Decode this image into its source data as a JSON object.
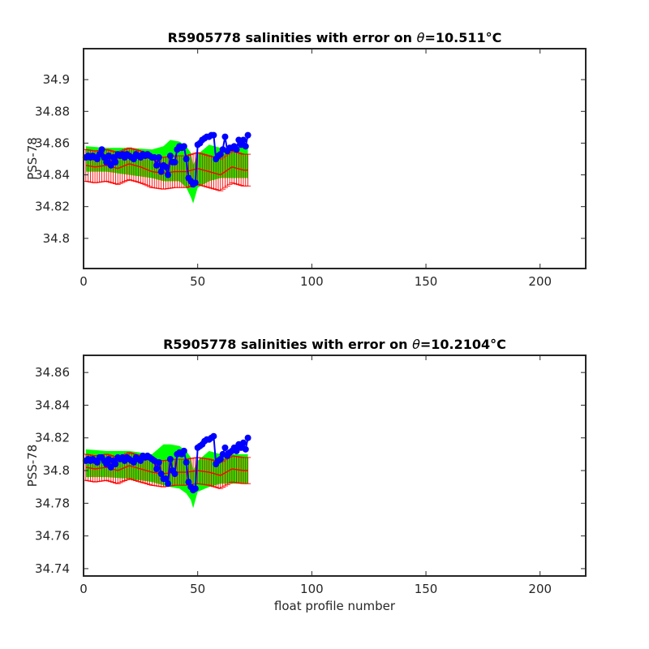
{
  "chart_data": [
    {
      "type": "line",
      "title_prefix": "R5905778 salinities with error on ",
      "title_symbol": "θ",
      "title_value": "=10.511",
      "title_unit": "°C",
      "xlabel": "",
      "ylabel": "PSS-78",
      "xlim": [
        0,
        220
      ],
      "ylim": [
        34.781,
        34.9195
      ],
      "xticks": [
        0,
        50,
        100,
        150,
        200
      ],
      "yticks": [
        34.8,
        34.82,
        34.84,
        34.86,
        34.88,
        34.9
      ],
      "ytick_labels": [
        "34.8",
        "34.82",
        "34.84",
        "34.86",
        "34.88",
        "34.9"
      ],
      "grid": false,
      "series": [
        {
          "role": "measured",
          "color": "#0000ff",
          "x": [
            1,
            2,
            3,
            4,
            5,
            6,
            7,
            8,
            9,
            10,
            11,
            12,
            13,
            14,
            15,
            16,
            17,
            18,
            19,
            20,
            21,
            22,
            23,
            24,
            25,
            26,
            27,
            28,
            29,
            30,
            31,
            32,
            33,
            34,
            35,
            36,
            37,
            38,
            39,
            40,
            41,
            42,
            43,
            44,
            45,
            46,
            47,
            48,
            49,
            50,
            51,
            52,
            53,
            54,
            55,
            56,
            57,
            58,
            59,
            60,
            61,
            62,
            63,
            64,
            65,
            66,
            67,
            68,
            69,
            70,
            71,
            72
          ],
          "y": [
            34.851,
            34.852,
            34.851,
            34.852,
            34.851,
            34.85,
            34.853,
            34.856,
            34.851,
            34.848,
            34.852,
            34.846,
            34.851,
            34.848,
            34.853,
            34.852,
            34.853,
            34.851,
            34.853,
            34.852,
            34.851,
            34.85,
            34.853,
            34.852,
            34.851,
            34.853,
            34.852,
            34.853,
            34.852,
            34.851,
            34.851,
            34.846,
            34.851,
            34.842,
            34.846,
            34.845,
            34.84,
            34.852,
            34.848,
            34.848,
            34.856,
            34.858,
            34.857,
            34.858,
            34.85,
            34.838,
            34.836,
            34.834,
            34.835,
            34.859,
            34.86,
            34.862,
            34.863,
            34.864,
            34.864,
            34.865,
            34.865,
            34.85,
            34.852,
            34.853,
            34.856,
            34.864,
            34.855,
            34.857,
            34.857,
            34.858,
            34.856,
            34.862,
            34.859,
            34.862,
            34.858,
            34.865
          ]
        },
        {
          "role": "mapped",
          "color": "#ff0000",
          "x": [
            1,
            5,
            10,
            15,
            20,
            25,
            30,
            35,
            40,
            45,
            50,
            55,
            60,
            65,
            70,
            72
          ],
          "y": [
            34.846,
            34.845,
            34.846,
            34.844,
            34.847,
            34.845,
            34.842,
            34.841,
            34.842,
            34.842,
            34.844,
            34.842,
            34.84,
            34.845,
            34.843,
            34.843
          ]
        },
        {
          "role": "mapped_error",
          "color": "#ff0000",
          "half_width": 0.01
        },
        {
          "role": "uncertainty_band",
          "color": "#00ff00",
          "x": [
            1,
            10,
            20,
            30,
            35,
            38,
            42,
            45,
            47,
            48,
            50,
            55,
            60,
            65,
            72
          ],
          "upper": [
            34.858,
            34.857,
            34.857,
            34.856,
            34.858,
            34.862,
            34.861,
            34.858,
            34.854,
            34.846,
            34.853,
            34.859,
            34.857,
            34.857,
            34.859
          ],
          "lower": [
            34.842,
            34.842,
            34.84,
            34.838,
            34.836,
            34.836,
            34.836,
            34.832,
            34.826,
            34.822,
            34.832,
            34.836,
            34.838,
            34.838,
            34.838
          ]
        }
      ]
    },
    {
      "type": "line",
      "title_prefix": "R5905778 salinities with error on ",
      "title_symbol": "θ",
      "title_value": "=10.2104",
      "title_unit": "°C",
      "xlabel": "float profile number",
      "ylabel": "PSS-78",
      "xlim": [
        0,
        220
      ],
      "ylim": [
        34.7355,
        34.8705
      ],
      "xticks": [
        0,
        50,
        100,
        150,
        200
      ],
      "yticks": [
        34.74,
        34.76,
        34.78,
        34.8,
        34.82,
        34.84,
        34.86
      ],
      "ytick_labels": [
        "34.74",
        "34.76",
        "34.78",
        "34.8",
        "34.82",
        "34.84",
        "34.86"
      ],
      "grid": false,
      "series": [
        {
          "role": "measured",
          "color": "#0000ff",
          "x": [
            1,
            2,
            3,
            4,
            5,
            6,
            7,
            8,
            9,
            10,
            11,
            12,
            13,
            14,
            15,
            16,
            17,
            18,
            19,
            20,
            21,
            22,
            23,
            24,
            25,
            26,
            27,
            28,
            29,
            30,
            31,
            32,
            33,
            34,
            35,
            36,
            37,
            38,
            39,
            40,
            41,
            42,
            43,
            44,
            45,
            46,
            47,
            48,
            49,
            50,
            51,
            52,
            53,
            54,
            55,
            56,
            57,
            58,
            59,
            60,
            61,
            62,
            63,
            64,
            65,
            66,
            67,
            68,
            69,
            70,
            71,
            72
          ],
          "y": [
            34.806,
            34.807,
            34.806,
            34.807,
            34.806,
            34.805,
            34.808,
            34.808,
            34.806,
            34.804,
            34.807,
            34.802,
            34.806,
            34.804,
            34.808,
            34.807,
            34.808,
            34.806,
            34.808,
            34.807,
            34.806,
            34.805,
            34.808,
            34.807,
            34.806,
            34.809,
            34.808,
            34.809,
            34.808,
            34.807,
            34.806,
            34.801,
            34.805,
            34.798,
            34.795,
            34.795,
            34.792,
            34.807,
            34.8,
            34.798,
            34.81,
            34.811,
            34.81,
            34.812,
            34.805,
            34.793,
            34.79,
            34.788,
            34.789,
            34.814,
            34.815,
            34.816,
            34.818,
            34.819,
            34.819,
            34.82,
            34.821,
            34.804,
            34.806,
            34.807,
            34.81,
            34.814,
            34.809,
            34.811,
            34.812,
            34.814,
            34.812,
            34.816,
            34.814,
            34.817,
            34.813,
            34.82
          ]
        },
        {
          "role": "mapped",
          "color": "#ff0000",
          "x": [
            1,
            5,
            10,
            15,
            20,
            25,
            30,
            35,
            40,
            45,
            50,
            55,
            60,
            65,
            70,
            72
          ],
          "y": [
            34.802,
            34.801,
            34.802,
            34.8,
            34.803,
            34.801,
            34.799,
            34.798,
            34.799,
            34.799,
            34.8,
            34.799,
            34.797,
            34.801,
            34.8,
            34.8
          ]
        },
        {
          "role": "mapped_error",
          "color": "#ff0000",
          "half_width": 0.008
        },
        {
          "role": "uncertainty_band",
          "color": "#00ff00",
          "x": [
            1,
            10,
            20,
            30,
            35,
            38,
            42,
            45,
            47,
            48,
            50,
            55,
            60,
            65,
            72
          ],
          "upper": [
            34.813,
            34.812,
            34.812,
            34.81,
            34.816,
            34.816,
            34.815,
            34.812,
            34.808,
            34.8,
            34.806,
            34.812,
            34.81,
            34.81,
            34.81
          ],
          "lower": [
            34.796,
            34.796,
            34.795,
            34.793,
            34.791,
            34.79,
            34.789,
            34.786,
            34.782,
            34.777,
            34.787,
            34.79,
            34.792,
            34.792,
            34.792
          ]
        }
      ]
    }
  ]
}
